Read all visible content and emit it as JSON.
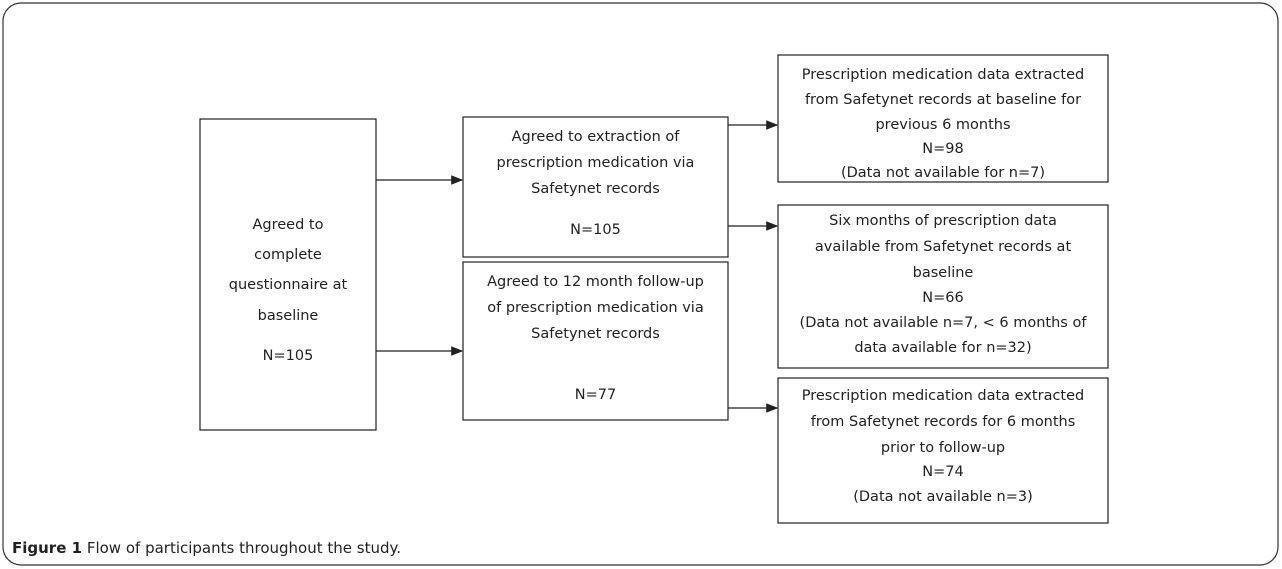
{
  "nodes": [
    {
      "lines": [
        "Agreed to",
        "complete",
        "questionnaire at",
        "baseline",
        "N=105"
      ]
    },
    {
      "lines": [
        "Agreed to extraction of",
        "prescription medication via",
        "Safetynet records",
        "N=105"
      ]
    },
    {
      "lines": [
        "Agreed to 12 month follow-up",
        "of prescription medication via",
        "Safetynet records",
        "N=77"
      ]
    },
    {
      "lines": [
        "Prescription medication data extracted",
        "from Safetynet records at baseline for",
        "previous 6 months",
        "N=98",
        "(Data not available for n=7)"
      ]
    },
    {
      "lines": [
        "Six months of prescription data",
        "available from Safetynet records at",
        "baseline",
        "N=66",
        "(Data not available n=7, < 6 months of",
        "data available for n=32)"
      ]
    },
    {
      "lines": [
        "Prescription medication data extracted",
        "from Safetynet records for 6 months",
        "prior to follow-up",
        "N=74",
        "(Data not available n=3)"
      ]
    }
  ],
  "caption": {
    "label": "Figure 1",
    "text": "Flow of participants throughout the study."
  }
}
